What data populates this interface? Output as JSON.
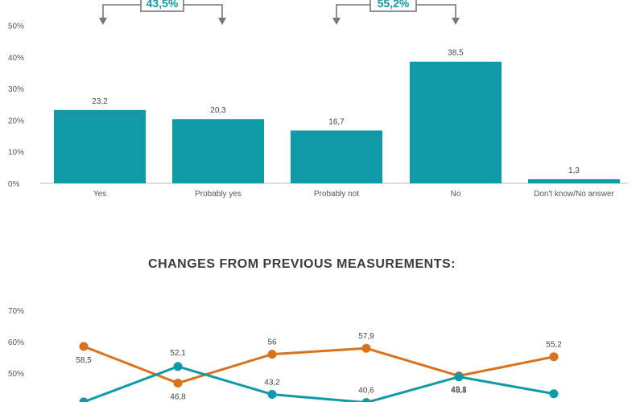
{
  "colors": {
    "teal": "#0e9aa7",
    "orange": "#d9721b",
    "bracket": "#777777",
    "axis": "#bbbbbb"
  },
  "chart_data": [
    {
      "type": "bar",
      "categories": [
        "Yes",
        "Probably yes",
        "Probably not",
        "No",
        "Don't know/No answer"
      ],
      "values": [
        23.2,
        20.3,
        16.7,
        38.5,
        1.3
      ],
      "value_labels": [
        "23,2",
        "20,3",
        "16,7",
        "38,5",
        "1,3"
      ],
      "yticks": [
        "0%",
        "10%",
        "20%",
        "30%",
        "40%",
        "50%"
      ],
      "ylim": [
        0,
        50
      ],
      "grid": false,
      "callouts": [
        {
          "label": "43,5%",
          "spans": [
            "Yes",
            "Probably yes"
          ]
        },
        {
          "label": "55,2%",
          "spans": [
            "Probably not",
            "No"
          ]
        }
      ]
    },
    {
      "type": "line",
      "title": "CHANGES FROM PREVIOUS MEASUREMENTS:",
      "yticks": [
        "50%",
        "60%",
        "70%"
      ],
      "grid": false,
      "series": [
        {
          "color": "orange",
          "values": [
            58.5,
            46.8,
            56,
            57.9,
            49.1,
            55.2
          ],
          "labels": [
            "58,5",
            "46,8",
            "56",
            "57,9",
            "49,1",
            "55,2"
          ]
        },
        {
          "color": "teal",
          "values": [
            40.8,
            52.1,
            43.2,
            40.6,
            48.8,
            43.4
          ],
          "labels": [
            "",
            "52,1",
            "43,2",
            "40,6",
            "48,8",
            ""
          ]
        }
      ]
    }
  ]
}
